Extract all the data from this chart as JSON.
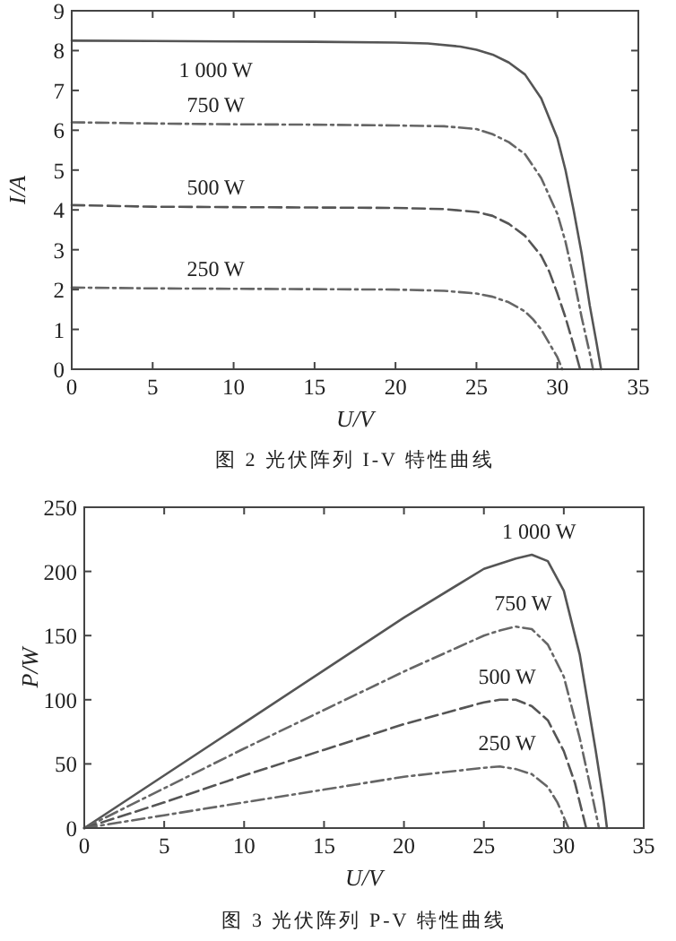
{
  "chart_data": [
    {
      "type": "line",
      "title": "图 2 光伏阵列 I-V 特性曲线",
      "xlabel": "U/V",
      "ylabel": "I/A",
      "xlim": [
        0,
        35
      ],
      "ylim": [
        0,
        9
      ],
      "xticks": [
        0,
        5,
        10,
        15,
        20,
        25,
        30,
        35
      ],
      "yticks": [
        0,
        1,
        2,
        3,
        4,
        5,
        6,
        7,
        8,
        9
      ],
      "series": [
        {
          "name": "1 000 W",
          "color": "#555555",
          "line_style": "solid",
          "x": [
            0,
            5,
            10,
            15,
            20,
            22,
            24,
            25,
            26,
            27,
            28,
            29,
            30,
            30.5,
            31,
            31.5,
            32,
            32.4,
            32.7
          ],
          "values": [
            8.25,
            8.24,
            8.23,
            8.22,
            8.2,
            8.18,
            8.1,
            8.02,
            7.9,
            7.7,
            7.4,
            6.8,
            5.8,
            5.0,
            4.0,
            2.9,
            1.6,
            0.7,
            0
          ]
        },
        {
          "name": "750 W",
          "color": "#666666",
          "line_style": "dashdot",
          "x": [
            0,
            5,
            10,
            15,
            20,
            23,
            25,
            26,
            27,
            28,
            29,
            30,
            30.5,
            31,
            31.5,
            32,
            32.2
          ],
          "values": [
            6.2,
            6.17,
            6.15,
            6.14,
            6.12,
            6.1,
            6.03,
            5.9,
            5.7,
            5.4,
            4.8,
            3.9,
            3.2,
            2.3,
            1.3,
            0.4,
            0
          ]
        },
        {
          "name": "500 W",
          "color": "#555555",
          "line_style": "dashed",
          "x": [
            0,
            5,
            10,
            15,
            20,
            23,
            25,
            26,
            27,
            28,
            29,
            29.5,
            30,
            30.5,
            31,
            31.4
          ],
          "values": [
            4.12,
            4.08,
            4.07,
            4.06,
            4.05,
            4.02,
            3.95,
            3.85,
            3.65,
            3.35,
            2.85,
            2.45,
            1.9,
            1.3,
            0.6,
            0
          ]
        },
        {
          "name": "250 W",
          "color": "#666666",
          "line_style": "dashdot",
          "x": [
            0,
            5,
            10,
            15,
            20,
            23,
            25,
            26,
            27,
            28,
            28.5,
            29,
            29.5,
            30,
            30.3
          ],
          "values": [
            2.05,
            2.03,
            2.02,
            2.01,
            2.0,
            1.97,
            1.9,
            1.82,
            1.68,
            1.45,
            1.25,
            1.0,
            0.65,
            0.3,
            0
          ]
        }
      ]
    },
    {
      "type": "line",
      "title": "图 3 光伏阵列 P-V 特性曲线",
      "xlabel": "U/V",
      "ylabel": "P/W",
      "xlim": [
        0,
        35
      ],
      "ylim": [
        0,
        250
      ],
      "xticks": [
        0,
        5,
        10,
        15,
        20,
        25,
        30,
        35
      ],
      "yticks": [
        0,
        50,
        100,
        150,
        200,
        250
      ],
      "series": [
        {
          "name": "1 000 W",
          "color": "#555555",
          "line_style": "solid",
          "x": [
            0,
            5,
            10,
            15,
            20,
            25,
            27,
            28,
            29,
            30,
            31,
            32,
            32.5,
            32.7
          ],
          "values": [
            0,
            41,
            82,
            123,
            164,
            202,
            210,
            213,
            208,
            185,
            135,
            60,
            20,
            0
          ]
        },
        {
          "name": "750 W",
          "color": "#666666",
          "line_style": "dashdot",
          "x": [
            0,
            5,
            10,
            15,
            20,
            25,
            26,
            27,
            28,
            29,
            30,
            31,
            31.7,
            32.2
          ],
          "values": [
            0,
            31,
            62,
            92,
            122,
            150,
            154,
            157,
            155,
            143,
            118,
            70,
            30,
            0
          ]
        },
        {
          "name": "500 W",
          "color": "#555555",
          "line_style": "dashed",
          "x": [
            0,
            5,
            10,
            15,
            20,
            25,
            26,
            27,
            28,
            29,
            30,
            30.7,
            31.4
          ],
          "values": [
            0,
            20,
            41,
            61,
            81,
            98,
            100,
            100,
            95,
            84,
            60,
            35,
            0
          ]
        },
        {
          "name": "250 W",
          "color": "#666666",
          "line_style": "dashdot",
          "x": [
            0,
            5,
            10,
            15,
            20,
            25,
            26,
            27,
            28,
            29,
            29.6,
            30.3
          ],
          "values": [
            0,
            10,
            20,
            30,
            40,
            47,
            48,
            46,
            42,
            32,
            20,
            0
          ]
        }
      ]
    }
  ]
}
